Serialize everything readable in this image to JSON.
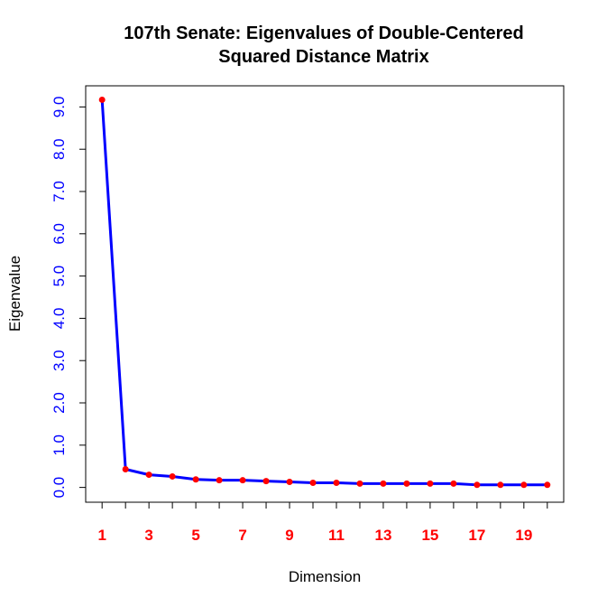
{
  "chart_data": {
    "type": "line",
    "title": "107th Senate: Eigenvalues of Double-Centered",
    "subtitle": "Squared Distance Matrix",
    "xlabel": "Dimension",
    "ylabel": "Eigenvalue",
    "x": [
      1,
      2,
      3,
      4,
      5,
      6,
      7,
      8,
      9,
      10,
      11,
      12,
      13,
      14,
      15,
      16,
      17,
      18,
      19,
      20
    ],
    "values": [
      9.17,
      0.43,
      0.3,
      0.26,
      0.19,
      0.17,
      0.17,
      0.15,
      0.13,
      0.11,
      0.11,
      0.09,
      0.09,
      0.09,
      0.09,
      0.09,
      0.06,
      0.06,
      0.06,
      0.06
    ],
    "xlim": [
      0.3,
      20.7
    ],
    "ylim": [
      -0.35,
      9.5
    ],
    "xticks": [
      1,
      2,
      3,
      4,
      5,
      6,
      7,
      8,
      9,
      10,
      11,
      12,
      13,
      14,
      15,
      16,
      17,
      18,
      19,
      20
    ],
    "xtick_labels": [
      "1",
      "3",
      "5",
      "7",
      "9",
      "11",
      "13",
      "15",
      "17",
      "19"
    ],
    "yticks": [
      0,
      1,
      2,
      3,
      4,
      5,
      6,
      7,
      8,
      9
    ],
    "ytick_labels": [
      "0.0",
      "1.0",
      "2.0",
      "3.0",
      "4.0",
      "5.0",
      "6.0",
      "7.0",
      "8.0",
      "9.0"
    ],
    "grid": false,
    "colors": {
      "line": "#0000ff",
      "points": "#ff0000",
      "xtick_labels": "#ff0000",
      "ytick_labels": "#0000ff"
    }
  }
}
